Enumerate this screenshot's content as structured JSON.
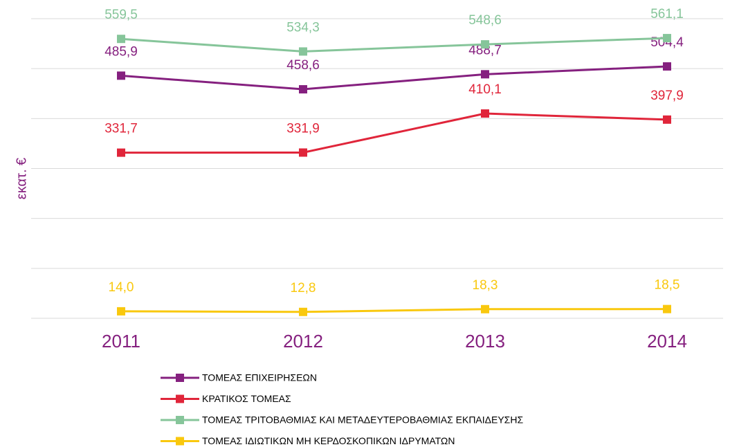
{
  "chart_data": {
    "type": "line",
    "y_label": "εκατ. €",
    "categories": [
      "2011",
      "2012",
      "2013",
      "2014"
    ],
    "series": [
      {
        "name": "ΤΟΜΕΑΣ ΕΠΙΧΕΙΡΗΣΕΩΝ",
        "color": "#85207f",
        "values": [
          485.9,
          458.6,
          488.7,
          504.4
        ],
        "value_labels": [
          "485,9",
          "458,6",
          "488,7",
          "504,4"
        ]
      },
      {
        "name": "ΚΡΑΤΙΚΟΣ ΤΟΜΕΑΣ",
        "color": "#e0253a",
        "values": [
          331.7,
          331.9,
          410.1,
          397.9
        ],
        "value_labels": [
          "331,7",
          "331,9",
          "410,1",
          "397,9"
        ]
      },
      {
        "name": "ΤΟΜΕΑΣ ΤΡΙΤΟΒΑΘΜΙΑΣ ΚΑΙ ΜΕΤΑΔΕΥΤΕΡΟΒΑΘΜΙΑΣ ΕΚΠΑΙΔΕΥΣΗΣ",
        "color": "#86c59a",
        "values": [
          559.5,
          534.3,
          548.6,
          561.1
        ],
        "value_labels": [
          "559,5",
          "534,3",
          "548,6",
          "561,1"
        ]
      },
      {
        "name": "ΤΟΜΕΑΣ ΙΔΙΩΤΙΚΩΝ ΜΗ ΚΕΡΔΟΣΚΟΠΙΚΩΝ ΙΔΡΥΜΑΤΩΝ",
        "color": "#f9c80e",
        "values": [
          14.0,
          12.8,
          18.3,
          18.5
        ],
        "value_labels": [
          "14,0",
          "12,8",
          "18,3",
          "18,5"
        ]
      }
    ],
    "ylim": [
      0,
      600
    ],
    "yticks": [
      0,
      100,
      200,
      300,
      400,
      500,
      600
    ],
    "grid": true,
    "legend": "bottom"
  }
}
